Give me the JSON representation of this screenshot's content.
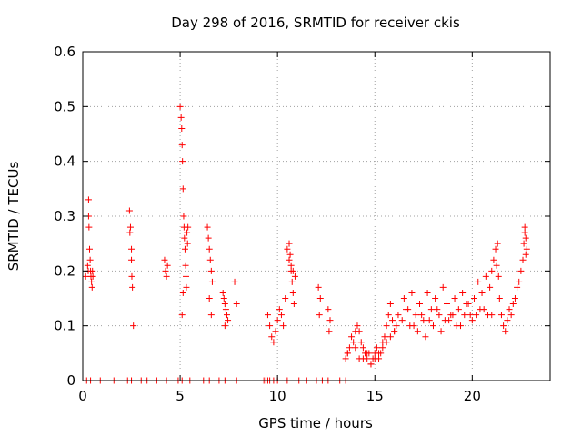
{
  "chart_data": {
    "type": "scatter",
    "title": "Day 298 of 2016, SRMTID for receiver ckis",
    "xlabel": "GPS time / hours",
    "ylabel": "SRMTID / TECUs",
    "xlim": [
      0,
      24
    ],
    "ylim": [
      0,
      0.6
    ],
    "xticks": [
      0,
      5,
      10,
      15,
      20
    ],
    "xtick_labels": [
      "0",
      "5",
      "10",
      "15",
      "20"
    ],
    "yticks": [
      0,
      0.1,
      0.2,
      0.3,
      0.4,
      0.5,
      0.6
    ],
    "ytick_labels": [
      "0",
      "0.1",
      "0.2",
      "0.3",
      "0.4",
      "0.5",
      "0.6"
    ],
    "grid": true,
    "marker": "+",
    "color": "#ff0000",
    "series": [
      {
        "name": "SRMTID",
        "x": [
          0.15,
          0.3,
          0.3,
          0.32,
          0.35,
          0.38,
          0.4,
          0.42,
          0.45,
          0.48,
          0.5,
          0.52,
          0.25,
          0.28,
          2.4,
          2.45,
          2.5,
          2.5,
          2.52,
          2.55,
          2.6,
          2.42,
          4.2,
          4.25,
          4.3,
          4.35,
          5.0,
          5.05,
          5.08,
          5.1,
          5.12,
          5.15,
          5.18,
          5.2,
          5.22,
          5.25,
          5.28,
          5.3,
          5.32,
          5.35,
          5.38,
          5.4,
          5.1,
          5.15,
          6.4,
          6.45,
          6.5,
          6.55,
          6.6,
          6.65,
          6.5,
          6.6,
          7.2,
          7.25,
          7.3,
          7.35,
          7.4,
          7.45,
          7.3,
          7.8,
          7.9,
          9.5,
          9.6,
          9.7,
          9.8,
          9.9,
          10.0,
          10.1,
          10.2,
          10.3,
          10.4,
          10.5,
          10.6,
          10.7,
          10.8,
          10.9,
          10.6,
          10.65,
          10.7,
          10.75,
          10.8,
          10.85,
          12.1,
          12.2,
          12.15,
          12.6,
          12.7,
          12.65,
          13.5,
          13.6,
          13.7,
          13.8,
          13.9,
          14.0,
          14.1,
          14.2,
          14.3,
          14.4,
          14.5,
          14.6,
          14.7,
          14.8,
          14.9,
          15.0,
          15.1,
          15.2,
          15.3,
          15.4,
          15.5,
          15.6,
          15.7,
          15.8,
          15.9,
          16.0,
          16.1,
          16.2,
          16.5,
          16.7,
          16.9,
          17.1,
          17.3,
          17.5,
          17.7,
          17.9,
          18.1,
          18.3,
          18.5,
          18.7,
          18.9,
          19.1,
          19.3,
          19.5,
          19.7,
          19.9,
          20.1,
          20.3,
          20.5,
          20.7,
          20.9,
          21.0,
          21.1,
          21.2,
          21.3,
          21.25,
          21.35,
          21.4,
          21.5,
          21.6,
          21.7,
          21.8,
          21.9,
          22.0,
          22.1,
          22.2,
          22.3,
          22.4,
          22.5,
          22.6,
          22.65,
          22.7,
          22.75,
          22.8,
          22.7,
          22.75,
          13.6,
          14.0,
          14.4,
          14.8,
          15.2,
          15.6,
          16.0,
          16.4,
          16.8,
          17.2,
          17.6,
          18.0,
          18.4,
          18.8,
          19.2,
          19.6,
          20.0,
          20.4,
          20.8,
          14.2,
          14.6,
          15.0,
          15.4,
          15.8,
          16.6,
          17.0,
          17.4,
          17.8,
          18.2,
          18.6,
          19.0,
          19.4,
          19.8,
          20.2,
          20.6,
          21.0,
          0.2,
          0.4,
          0.9,
          1.6,
          2.3,
          2.5,
          3.0,
          3.3,
          3.8,
          4.3,
          4.9,
          5.1,
          5.5,
          6.2,
          6.5,
          7.0,
          7.3,
          7.9,
          9.3,
          9.4,
          9.5,
          9.6,
          9.8,
          10.0,
          10.5,
          11.1,
          11.5,
          12.0,
          12.3,
          12.6,
          13.2,
          13.5
        ],
        "y": [
          0.19,
          0.33,
          0.3,
          0.28,
          0.24,
          0.22,
          0.2,
          0.19,
          0.18,
          0.17,
          0.2,
          0.19,
          0.21,
          0.2,
          0.31,
          0.28,
          0.24,
          0.22,
          0.19,
          0.17,
          0.1,
          0.27,
          0.22,
          0.2,
          0.19,
          0.21,
          0.5,
          0.48,
          0.46,
          0.43,
          0.4,
          0.35,
          0.3,
          0.28,
          0.26,
          0.24,
          0.21,
          0.19,
          0.17,
          0.27,
          0.25,
          0.28,
          0.12,
          0.16,
          0.28,
          0.26,
          0.24,
          0.22,
          0.2,
          0.18,
          0.15,
          0.12,
          0.16,
          0.15,
          0.14,
          0.13,
          0.12,
          0.11,
          0.1,
          0.18,
          0.14,
          0.12,
          0.1,
          0.08,
          0.07,
          0.09,
          0.11,
          0.13,
          0.12,
          0.1,
          0.15,
          0.24,
          0.22,
          0.21,
          0.2,
          0.19,
          0.25,
          0.23,
          0.2,
          0.18,
          0.16,
          0.14,
          0.17,
          0.15,
          0.12,
          0.13,
          0.11,
          0.09,
          0.04,
          0.05,
          0.06,
          0.08,
          0.07,
          0.09,
          0.1,
          0.09,
          0.07,
          0.06,
          0.05,
          0.04,
          0.05,
          0.03,
          0.04,
          0.05,
          0.06,
          0.04,
          0.05,
          0.07,
          0.08,
          0.1,
          0.12,
          0.14,
          0.11,
          0.09,
          0.1,
          0.12,
          0.15,
          0.13,
          0.16,
          0.12,
          0.14,
          0.11,
          0.16,
          0.13,
          0.15,
          0.12,
          0.17,
          0.14,
          0.12,
          0.15,
          0.13,
          0.16,
          0.14,
          0.12,
          0.15,
          0.18,
          0.16,
          0.19,
          0.17,
          0.2,
          0.22,
          0.24,
          0.25,
          0.21,
          0.19,
          0.15,
          0.12,
          0.1,
          0.09,
          0.11,
          0.13,
          0.12,
          0.14,
          0.15,
          0.17,
          0.18,
          0.2,
          0.22,
          0.25,
          0.28,
          0.26,
          0.24,
          0.27,
          0.23,
          0.05,
          0.06,
          0.04,
          0.03,
          0.05,
          0.07,
          0.09,
          0.11,
          0.1,
          0.09,
          0.08,
          0.1,
          0.09,
          0.11,
          0.1,
          0.12,
          0.11,
          0.13,
          0.12,
          0.04,
          0.05,
          0.04,
          0.06,
          0.08,
          0.13,
          0.1,
          0.12,
          0.11,
          0.13,
          0.11,
          0.12,
          0.1,
          0.14,
          0.12,
          0.13,
          0.12,
          0,
          0,
          0,
          0,
          0,
          0,
          0,
          0,
          0,
          0,
          0,
          0,
          0,
          0,
          0,
          0,
          0,
          0,
          0,
          0,
          0,
          0,
          0,
          0,
          0,
          0,
          0,
          0,
          0,
          0,
          0,
          0
        ]
      }
    ]
  }
}
